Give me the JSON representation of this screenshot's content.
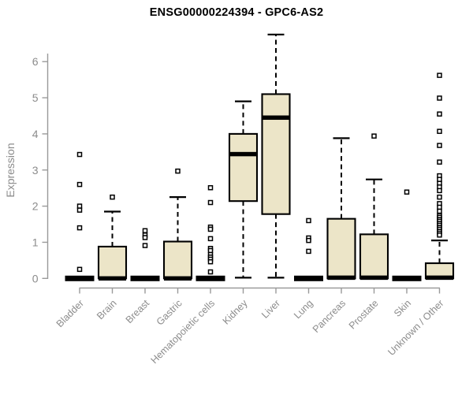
{
  "chart_data": {
    "type": "boxplot",
    "title": "ENSG00000224394 - GPC6-AS2",
    "ylabel": "Expression",
    "xlabel": "",
    "ylim": [
      0,
      6.9
    ],
    "y_ticks": [
      0,
      1,
      2,
      3,
      4,
      5,
      6
    ],
    "grid": false,
    "legend": false,
    "categories": [
      "Bladder",
      "Brain",
      "Breast",
      "Gastric",
      "Hematopoietic cells",
      "Kidney",
      "Liver",
      "Lung",
      "Pancreas",
      "Prostate",
      "Skin",
      "Unknown / Other"
    ],
    "boxes": [
      {
        "category": "Bladder",
        "q1": 0,
        "median": 0,
        "q3": 0,
        "whisker_low": 0,
        "whisker_high": 0,
        "outliers": [
          3.43,
          2.6,
          2.0,
          1.89,
          1.4,
          0.25
        ]
      },
      {
        "category": "Brain",
        "q1": 0,
        "median": 0,
        "q3": 0.88,
        "whisker_low": 0,
        "whisker_high": 1.85,
        "outliers": [
          2.25
        ]
      },
      {
        "category": "Breast",
        "q1": 0,
        "median": 0,
        "q3": 0,
        "whisker_low": 0,
        "whisker_high": 0,
        "outliers": [
          1.32,
          1.2,
          1.13,
          0.91
        ]
      },
      {
        "category": "Gastric",
        "q1": 0,
        "median": 0,
        "q3": 1.02,
        "whisker_low": 0,
        "whisker_high": 2.25,
        "outliers": [
          2.97
        ]
      },
      {
        "category": "Hematopoietic cells",
        "q1": 0,
        "median": 0,
        "q3": 0,
        "whisker_low": 0,
        "whisker_high": 0,
        "outliers": [
          2.51,
          2.1,
          1.42,
          1.36,
          1.1,
          0.83,
          0.77,
          0.66,
          0.59,
          0.53,
          0.46,
          0.18
        ]
      },
      {
        "category": "Kidney",
        "q1": 2.14,
        "median": 3.44,
        "q3": 4.0,
        "whisker_low": 0.02,
        "whisker_high": 4.9,
        "outliers": []
      },
      {
        "category": "Liver",
        "q1": 1.78,
        "median": 4.45,
        "q3": 5.1,
        "whisker_low": 0.02,
        "whisker_high": 6.75,
        "outliers": []
      },
      {
        "category": "Lung",
        "q1": 0,
        "median": 0,
        "q3": 0,
        "whisker_low": 0,
        "whisker_high": 0,
        "outliers": [
          1.6,
          1.12,
          1.05,
          0.75
        ]
      },
      {
        "category": "Pancreas",
        "q1": 0,
        "median": 0.02,
        "q3": 1.65,
        "whisker_low": 0,
        "whisker_high": 3.88,
        "outliers": []
      },
      {
        "category": "Prostate",
        "q1": 0,
        "median": 0.02,
        "q3": 1.22,
        "whisker_low": 0,
        "whisker_high": 2.74,
        "outliers": [
          3.94
        ]
      },
      {
        "category": "Skin",
        "q1": 0,
        "median": 0,
        "q3": 0,
        "whisker_low": 0,
        "whisker_high": 0,
        "outliers": [
          2.39
        ]
      },
      {
        "category": "Unknown / Other",
        "q1": 0,
        "median": 0.02,
        "q3": 0.42,
        "whisker_low": 0,
        "whisker_high": 1.05,
        "outliers": [
          5.62,
          4.99,
          4.55,
          4.07,
          3.68,
          3.22,
          2.84,
          2.74,
          2.63,
          2.53,
          2.43,
          2.25,
          2.07,
          1.97,
          1.86,
          1.74,
          1.69,
          1.63,
          1.58,
          1.52,
          1.47,
          1.41,
          1.36,
          1.3,
          1.25,
          1.2
        ]
      }
    ],
    "style": {
      "box_fill": "#ece5c8",
      "box_stroke": "#000000",
      "median_color": "#000000",
      "outlier_fill": "#ffffff",
      "outlier_stroke": "#000000",
      "axis_color": "#9a9a9a",
      "tick_label_color": "#8c8c8c",
      "title_color": "#000000"
    }
  }
}
